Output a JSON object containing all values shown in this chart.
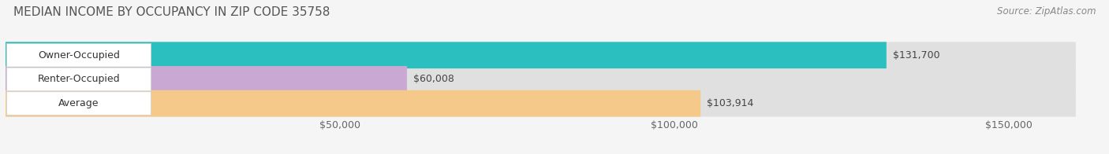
{
  "title": "MEDIAN INCOME BY OCCUPANCY IN ZIP CODE 35758",
  "source": "Source: ZipAtlas.com",
  "categories": [
    "Owner-Occupied",
    "Renter-Occupied",
    "Average"
  ],
  "values": [
    131700,
    60008,
    103914
  ],
  "bar_colors": [
    "#2bbfbf",
    "#c9a8d4",
    "#f5c98a"
  ],
  "bar_labels": [
    "$131,700",
    "$60,008",
    "$103,914"
  ],
  "background_color": "#f5f5f5",
  "bar_bg_color": "#e0e0e0",
  "xlim": [
    0,
    160000
  ],
  "xticks": [
    50000,
    100000,
    150000
  ],
  "xticklabels": [
    "$50,000",
    "$100,000",
    "$150,000"
  ],
  "bar_height": 0.55,
  "label_fontsize": 9,
  "title_fontsize": 11,
  "source_fontsize": 8.5
}
